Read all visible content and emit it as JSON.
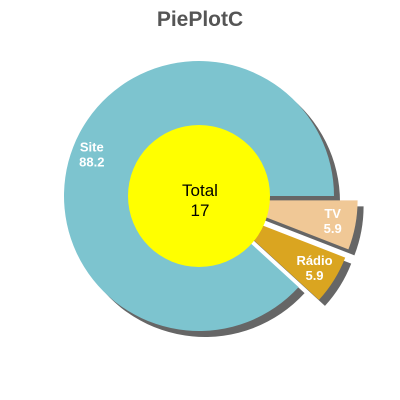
{
  "chart_data": {
    "type": "pie",
    "title": "PiePlotC",
    "center": {
      "label": "Total",
      "value": "17",
      "color": "#ffff00"
    },
    "slices": [
      {
        "name": "Site",
        "value": 88.2,
        "label_value": "88.2",
        "color": "#7dc4cf",
        "exploded": false
      },
      {
        "name": "Rádio",
        "value": 5.9,
        "label_value": "5.9",
        "color": "#daa520",
        "exploded": true
      },
      {
        "name": "TV",
        "value": 5.9,
        "label_value": "5.9",
        "color": "#f0c896",
        "exploded": true
      }
    ],
    "shadow_color": "#666666"
  }
}
